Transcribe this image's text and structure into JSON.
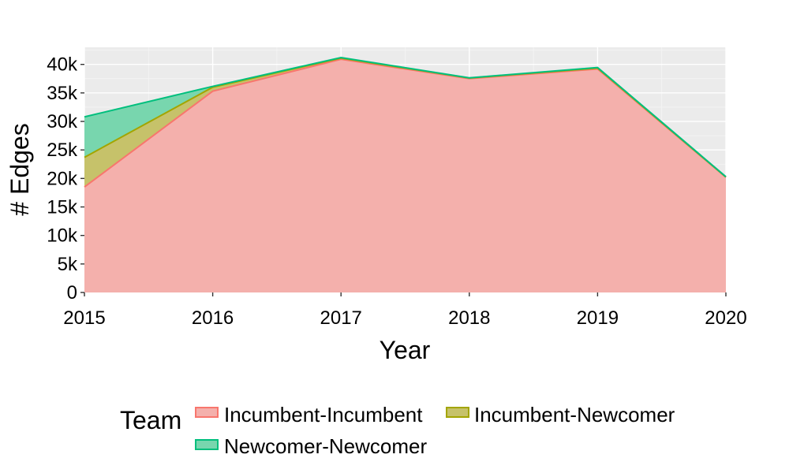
{
  "chart_data": {
    "type": "area",
    "stacked": true,
    "title": "",
    "xlabel": "Year",
    "ylabel": "# Edges",
    "x": [
      2015,
      2016,
      2017,
      2018,
      2019,
      2020
    ],
    "x_tick_labels": [
      "2015",
      "2016",
      "2017",
      "2018",
      "2019",
      "2020"
    ],
    "y_ticks": [
      0,
      5000,
      10000,
      15000,
      20000,
      25000,
      30000,
      35000,
      40000
    ],
    "y_tick_labels": [
      "0",
      "5k",
      "10k",
      "15k",
      "20k",
      "25k",
      "30k",
      "35k",
      "40k"
    ],
    "xlim": [
      2015,
      2020
    ],
    "ylim": [
      0,
      43000
    ],
    "grid": true,
    "legend": {
      "title": "Team",
      "position": "bottom"
    },
    "series": [
      {
        "name": "Incumbent-Incumbent",
        "color": "#F8766D",
        "fill": "#F4B0AC",
        "values": [
          18500,
          35300,
          40900,
          37500,
          39200,
          20200
        ]
      },
      {
        "name": "Incumbent-Newcomer",
        "color": "#A3A500",
        "fill": "#C6C26A",
        "values": [
          5200,
          700,
          200,
          100,
          150,
          50
        ]
      },
      {
        "name": "Newcomer-Newcomer",
        "color": "#00BF7D",
        "fill": "#78D6AE",
        "values": [
          7100,
          150,
          100,
          50,
          100,
          50
        ]
      }
    ]
  }
}
